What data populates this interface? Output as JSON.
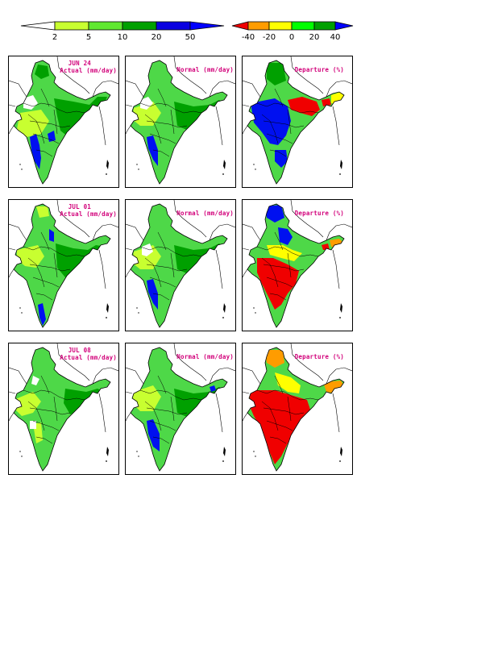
{
  "rain_colorbar": {
    "ticks": [
      "2",
      "5",
      "10",
      "20",
      "50"
    ],
    "colors": [
      "#ffffff",
      "#c8ff30",
      "#60e830",
      "#00a000",
      "#0a00e0",
      "#0000ff"
    ]
  },
  "departure_colorbar": {
    "ticks": [
      "-40",
      "-20",
      "0",
      "20",
      "40"
    ],
    "colors": [
      "#f00000",
      "#ff9c00",
      "#ffff00",
      "#00ff00",
      "#00a000",
      "#0000ff"
    ]
  },
  "rows": [
    {
      "date": "JUN 24",
      "actual_title": "Actual (mm/day)",
      "normal_title": "Normal (mm/day)",
      "departure_title": "Departure (%)"
    },
    {
      "date": "JUL 01",
      "actual_title": "Actual (mm/day)",
      "normal_title": "Normal (mm/day)",
      "departure_title": "Departure (%)"
    },
    {
      "date": "JUL 08",
      "actual_title": "Actual (mm/day)",
      "normal_title": "Normal (mm/day)",
      "departure_title": "Departure (%)"
    }
  ],
  "palette": {
    "title_color": "#d2007a",
    "white": "#ffffff",
    "light_green": "#c8ff30",
    "green": "#4ed848",
    "dark_green": "#00a000",
    "blue": "#0010f0",
    "red": "#f00000",
    "orange": "#ff9c00",
    "yellow": "#ffff00"
  }
}
